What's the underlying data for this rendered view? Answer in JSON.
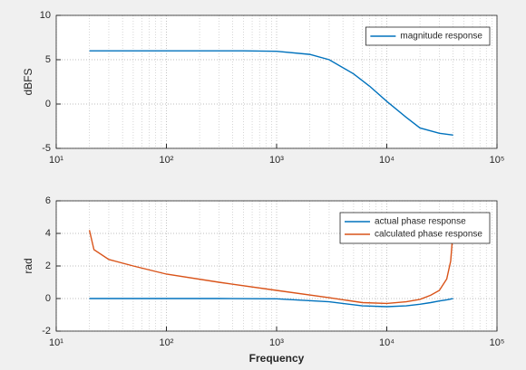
{
  "chart_data": [
    {
      "type": "line",
      "xscale": "log",
      "ylabel": "dBFS",
      "grid": true,
      "minor_grid": true,
      "legend": "upper right",
      "xlim": [
        10,
        100000
      ],
      "xticks": [
        {
          "value": 10,
          "label": "10¹"
        },
        {
          "value": 100,
          "label": "10²"
        },
        {
          "value": 1000,
          "label": "10³"
        },
        {
          "value": 10000,
          "label": "10⁴"
        },
        {
          "value": 100000,
          "label": "10⁵"
        }
      ],
      "ylim": [
        -5,
        10
      ],
      "yticks": [
        -5,
        0,
        5,
        10
      ],
      "x": [
        20,
        100,
        500,
        1000,
        2000,
        3000,
        5000,
        7000,
        10000,
        15000,
        20000,
        30000,
        40000
      ],
      "series": [
        {
          "name": "magnitude response",
          "color": "#0072bd",
          "values": [
            6,
            6,
            6,
            5.95,
            5.6,
            5.0,
            3.4,
            2.0,
            0.3,
            -1.5,
            -2.7,
            -3.3,
            -3.5
          ]
        }
      ]
    },
    {
      "type": "line",
      "xscale": "log",
      "ylabel": "rad",
      "xlabel": "Frequency",
      "grid": true,
      "minor_grid": true,
      "legend": "upper right",
      "xlim": [
        10,
        100000
      ],
      "xticks": [
        {
          "value": 10,
          "label": "10¹"
        },
        {
          "value": 100,
          "label": "10²"
        },
        {
          "value": 1000,
          "label": "10³"
        },
        {
          "value": 10000,
          "label": "10⁴"
        },
        {
          "value": 100000,
          "label": "10⁵"
        }
      ],
      "ylim": [
        -2,
        6
      ],
      "yticks": [
        -2,
        0,
        2,
        4,
        6
      ],
      "x": [
        20,
        22,
        30,
        50,
        100,
        300,
        1000,
        3000,
        6000,
        10000,
        15000,
        20000,
        25000,
        30000,
        35000,
        38000,
        40000
      ],
      "series": [
        {
          "name": "actual phase response",
          "color": "#0072bd",
          "values": [
            0,
            0,
            0,
            0,
            0,
            0,
            -0.02,
            -0.2,
            -0.45,
            -0.5,
            -0.45,
            -0.35,
            -0.25,
            -0.15,
            -0.08,
            -0.03,
            0
          ]
        },
        {
          "name": "calculated phase response",
          "color": "#d95319",
          "values": [
            4.2,
            3.0,
            2.4,
            2.0,
            1.5,
            1.0,
            0.5,
            0.05,
            -0.25,
            -0.3,
            -0.2,
            -0.05,
            0.2,
            0.5,
            1.2,
            2.3,
            4.2
          ]
        }
      ]
    }
  ]
}
